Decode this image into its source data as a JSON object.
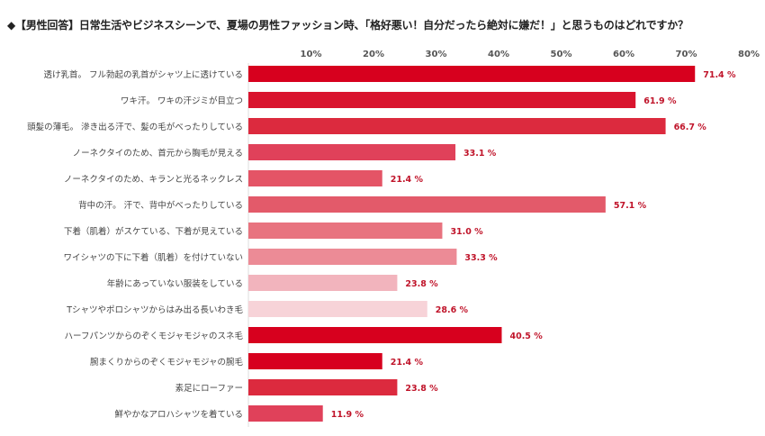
{
  "title": "◆【男性回答】日常生活やビジネスシーンで、夏場の男性ファッション時、「格好悪い！自分だったら絶対に嫌だ！」と思うものはどれですか？",
  "chart_data": {
    "type": "bar",
    "orientation": "horizontal",
    "categories": [
      "透け乳首。 フル勃起の乳首がシャツ上に透けている",
      "ワキ汗。 ワキの汗ジミが目立つ",
      "頭髪の薄毛。 滲き出る汗で、髪の毛がべったりしている",
      "ノーネクタイのため、首元から胸毛が見える",
      "ノーネクタイのため、キランと光るネックレス",
      "背中の汗。 汗で、背中がべったりしている",
      "下着（肌着）がスケている、下着が見えている",
      "ワイシャツの下に下着（肌着）を付けていない",
      "年齢にあっていない服装をしている",
      "Tシャツやポロシャツからはみ出る長いわき毛",
      "ハーフパンツからのぞくモジャモジャのスネ毛",
      "腕まくりからのぞくモジャモジャの腕毛",
      "素足にローファー",
      "鮮やかなアロハシャツを着ている"
    ],
    "values": [
      71.4,
      61.9,
      66.7,
      33.1,
      21.4,
      57.1,
      31.0,
      33.3,
      23.8,
      28.6,
      40.5,
      21.4,
      23.8,
      11.9
    ],
    "value_labels": [
      "71.4 %",
      "61.9 %",
      "66.7 %",
      "33.1 %",
      "21.4 %",
      "57.1 %",
      "31.0 %",
      "33.3 %",
      "23.8 %",
      "28.6 %",
      "40.5 %",
      "21.4 %",
      "23.8 %",
      "11.9 %"
    ],
    "bar_colors": [
      "#d7001e",
      "#d9142e",
      "#dc2a3e",
      "#e0415a",
      "#e45466",
      "#e35a6a",
      "#e8737f",
      "#ec8b96",
      "#f2b4bd",
      "#f7d3d8",
      "#d7001e",
      "#d7001e",
      "#dc2a3e",
      "#e0415a"
    ],
    "xlim": [
      0,
      80
    ],
    "xticks": [
      10,
      20,
      30,
      40,
      50,
      60,
      70,
      80
    ],
    "xtick_labels": [
      "10%",
      "20%",
      "30%",
      "40%",
      "50%",
      "60%",
      "70%",
      "80%"
    ],
    "axis_position": "top",
    "grid": false,
    "value_label_color": "#c0142a"
  }
}
